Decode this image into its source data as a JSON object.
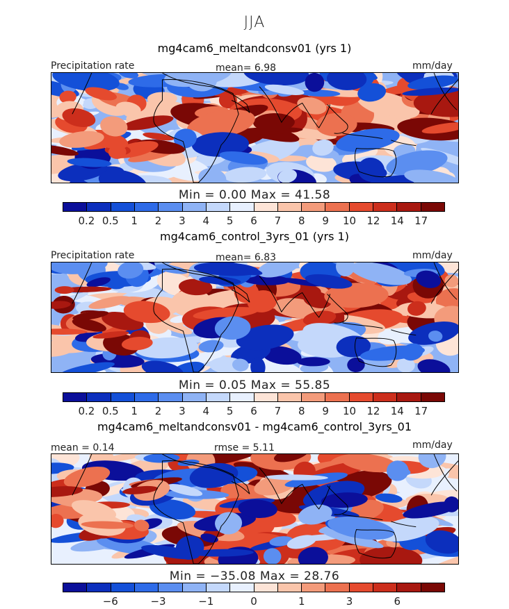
{
  "figure": {
    "season": "JJA",
    "panel_labels": {
      "precipitation_rate": "Precipitation rate",
      "units": "mm/day"
    }
  },
  "colors": {
    "levels": [
      "#0b0f9a",
      "#0c2fbd",
      "#1450d8",
      "#2e6be8",
      "#5b8ef0",
      "#8fb3f5",
      "#c4d8fb",
      "#e8f0fe",
      "#fde4d7",
      "#fac5ab",
      "#f39b7b",
      "#ec7150",
      "#e54a2e",
      "#cc2e1c",
      "#a81810",
      "#7a0805"
    ],
    "map_bg": "#c4d8fb",
    "coast": "#000000"
  },
  "panels": [
    {
      "title": "mg4cam6_meltandconsv01 (yrs 1)",
      "left_label": "Precipitation rate",
      "mean_text": "mean=    6.98",
      "right_label": "mm/day",
      "minmax_text": "Min  =     0.00  Max  =   41.58",
      "ticks": [
        "0.2",
        "0.5",
        "1",
        "2",
        "3",
        "4",
        "5",
        "6",
        "7",
        "8",
        "9",
        "10",
        "12",
        "14",
        "17"
      ]
    },
    {
      "title": "mg4cam6_control_3yrs_01 (yrs 1)",
      "left_label": "Precipitation rate",
      "mean_text": "mean=    6.83",
      "right_label": "mm/day",
      "minmax_text": "Min  =     0.05  Max  =   55.85",
      "ticks": [
        "0.2",
        "0.5",
        "1",
        "2",
        "3",
        "4",
        "5",
        "6",
        "7",
        "8",
        "9",
        "10",
        "12",
        "14",
        "17"
      ]
    },
    {
      "title": "mg4cam6_meltandconsv01 - mg4cam6_control_3yrs_01",
      "left_label": "mean  =     0.14",
      "mean_text": "rmse  =     5.11",
      "right_label": "mm/day",
      "minmax_text": "Min  = −35.08  Max  =   28.76",
      "ticks": [
        "−6",
        "−3",
        "−1",
        "0",
        "1",
        "3",
        "6"
      ]
    }
  ],
  "chart_data": [
    {
      "type": "heatmap",
      "title": "mg4cam6_meltandconsv01 (yrs 1)",
      "variable": "Precipitation rate",
      "units": "mm/day",
      "mean": 6.98,
      "min": 0.0,
      "max": 41.58,
      "levels": [
        0.2,
        0.5,
        1,
        2,
        3,
        4,
        5,
        6,
        7,
        8,
        9,
        10,
        12,
        14,
        17
      ]
    },
    {
      "type": "heatmap",
      "title": "mg4cam6_control_3yrs_01 (yrs 1)",
      "variable": "Precipitation rate",
      "units": "mm/day",
      "mean": 6.83,
      "min": 0.05,
      "max": 55.85,
      "levels": [
        0.2,
        0.5,
        1,
        2,
        3,
        4,
        5,
        6,
        7,
        8,
        9,
        10,
        12,
        14,
        17
      ]
    },
    {
      "type": "heatmap",
      "title": "mg4cam6_meltandconsv01 - mg4cam6_control_3yrs_01",
      "units": "mm/day",
      "mean": 0.14,
      "rmse": 5.11,
      "min": -35.08,
      "max": 28.76,
      "levels": [
        -6,
        -3,
        -1,
        0,
        1,
        3,
        6
      ]
    }
  ]
}
